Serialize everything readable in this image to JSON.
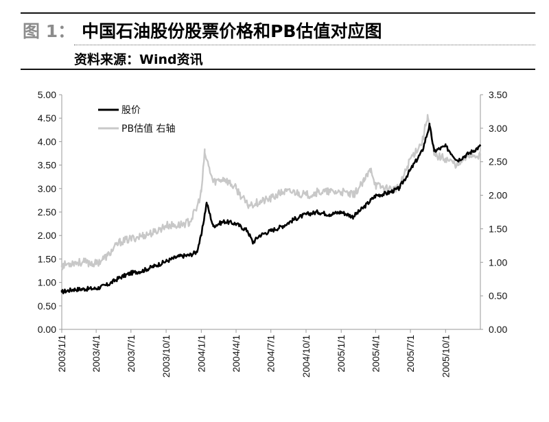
{
  "header": {
    "figure_label": "图 1：",
    "title": "中国石油股份股票价格和PB估值对应图",
    "source": "资料来源：Wind资讯"
  },
  "chart_data": {
    "type": "line",
    "legend_placement": "top-left",
    "grid": false,
    "x_ticks": [
      "2003/1/1",
      "2003/4/1",
      "2003/7/1",
      "2003/10/1",
      "2004/1/1",
      "2004/4/1",
      "2004/7/1",
      "2004/10/1",
      "2005/1/1",
      "2005/4/1",
      "2005/7/1",
      "2005/10/1"
    ],
    "x_range": [
      "2003/1/1",
      "2005/12/31"
    ],
    "y_left": {
      "ticks": [
        "0.00",
        "0.50",
        "1.00",
        "1.50",
        "2.00",
        "2.50",
        "3.00",
        "3.50",
        "4.00",
        "4.50",
        "5.00"
      ],
      "ylim": [
        0,
        5
      ]
    },
    "y_right": {
      "ticks": [
        "0.00",
        "0.50",
        "1.00",
        "1.50",
        "2.00",
        "2.50",
        "3.00",
        "3.50"
      ],
      "ylim": [
        0,
        3.5
      ]
    },
    "series": [
      {
        "name": "股价",
        "axis": "left",
        "color": "#000000",
        "x": [
          "2003/1/1",
          "2003/2/1",
          "2003/3/1",
          "2003/4/1",
          "2003/5/1",
          "2003/6/1",
          "2003/7/1",
          "2003/8/1",
          "2003/9/1",
          "2003/10/1",
          "2003/11/1",
          "2003/12/1",
          "2003/12/20",
          "2004/1/1",
          "2004/1/15",
          "2004/2/1",
          "2004/3/1",
          "2004/4/1",
          "2004/5/1",
          "2004/5/15",
          "2004/6/1",
          "2004/7/1",
          "2004/8/1",
          "2004/9/1",
          "2004/10/1",
          "2004/11/1",
          "2004/12/1",
          "2005/1/1",
          "2005/2/1",
          "2005/3/1",
          "2005/4/1",
          "2005/5/1",
          "2005/6/1",
          "2005/7/1",
          "2005/8/1",
          "2005/8/20",
          "2005/9/1",
          "2005/10/1",
          "2005/11/1",
          "2005/12/1",
          "2005/12/31"
        ],
        "values": [
          0.8,
          0.85,
          0.86,
          0.87,
          0.95,
          1.1,
          1.2,
          1.25,
          1.35,
          1.45,
          1.55,
          1.58,
          1.65,
          2.0,
          2.7,
          2.2,
          2.3,
          2.25,
          2.1,
          1.85,
          2.0,
          2.1,
          2.2,
          2.35,
          2.45,
          2.5,
          2.45,
          2.5,
          2.4,
          2.6,
          2.85,
          2.9,
          3.0,
          3.4,
          3.8,
          4.35,
          3.8,
          3.9,
          3.6,
          3.75,
          3.9
        ]
      },
      {
        "name": "PB估值 右轴",
        "axis": "right",
        "color": "#c8c8c8",
        "x": [
          "2003/1/1",
          "2003/2/1",
          "2003/3/1",
          "2003/4/1",
          "2003/5/1",
          "2003/6/1",
          "2003/7/1",
          "2003/8/1",
          "2003/9/1",
          "2003/10/1",
          "2003/11/1",
          "2003/12/1",
          "2003/12/20",
          "2004/1/1",
          "2004/1/10",
          "2004/2/1",
          "2004/3/1",
          "2004/4/1",
          "2004/5/1",
          "2004/6/1",
          "2004/7/1",
          "2004/8/1",
          "2004/9/1",
          "2004/10/1",
          "2004/11/1",
          "2004/12/1",
          "2005/1/1",
          "2005/2/1",
          "2005/3/1",
          "2005/3/20",
          "2005/4/1",
          "2005/5/1",
          "2005/6/1",
          "2005/7/1",
          "2005/8/1",
          "2005/8/15",
          "2005/9/1",
          "2005/10/1",
          "2005/11/1",
          "2005/12/1",
          "2005/12/31"
        ],
        "values": [
          0.95,
          1.0,
          1.0,
          0.98,
          1.1,
          1.3,
          1.35,
          1.4,
          1.45,
          1.55,
          1.55,
          1.6,
          1.8,
          2.05,
          2.63,
          2.2,
          2.25,
          2.1,
          1.85,
          1.9,
          1.95,
          2.05,
          2.05,
          2.0,
          2.05,
          2.05,
          2.05,
          2.0,
          2.2,
          2.4,
          2.15,
          2.1,
          2.1,
          2.55,
          2.8,
          3.2,
          2.6,
          2.55,
          2.45,
          2.6,
          2.6
        ]
      }
    ]
  }
}
